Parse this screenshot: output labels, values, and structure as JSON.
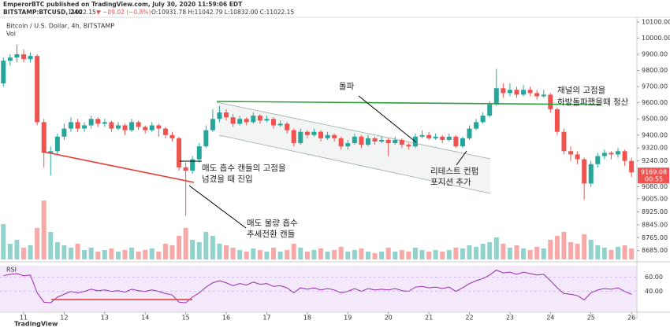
{
  "header": {
    "author_line": "EmperorBTC published on TradingView.com, July 30, 2020 11:59:06 EDT",
    "symbol": "BITSTAMP:BTCUSD, 240",
    "price": "11022.15",
    "change": "▼ −89.02 (−0.8%)",
    "ohlc": "O:10931.78 H:11042.79 L:10832.00 C:11022.15",
    "brand": "TradingView"
  },
  "annotations": {
    "breakout": "돌파",
    "entry": [
      "매도 흡수 캔들의 고점을",
      "넘겼을 때 진입"
    ],
    "reversal": [
      "매도 물량 흡수",
      "추세전환 캔들"
    ],
    "retest": [
      "리테스트 컨펌",
      "포지션 추가"
    ],
    "exit": [
      "채널의 고점을",
      "하방돌파했을때 청산"
    ]
  },
  "chart_data": [
    {
      "type": "candlestick",
      "title": "Bitcoin / U.S. Dollar, 4h, BITSTAMP",
      "volume_label": "Vol",
      "countdown": "00:55",
      "up_color": "#26a69a",
      "down_color": "#ef5350",
      "x": [
        0,
        1,
        2,
        3,
        4,
        5,
        6,
        7,
        8,
        9,
        10,
        11,
        12,
        13,
        14,
        15,
        16,
        17,
        18,
        19,
        20,
        21,
        22,
        23,
        24,
        25,
        26,
        27,
        28,
        29,
        30,
        31,
        32,
        33,
        34,
        35,
        36,
        37,
        38,
        39,
        40,
        41,
        42,
        43,
        44,
        45,
        46,
        47,
        48,
        49,
        50,
        51,
        52,
        53,
        54,
        55,
        56,
        57,
        58,
        59,
        60,
        61,
        62,
        63,
        64,
        65,
        66,
        67,
        68,
        69,
        70,
        71,
        72,
        73,
        74,
        75,
        76,
        77,
        78,
        79,
        80,
        81,
        82,
        83,
        84,
        85,
        86,
        87,
        88,
        89,
        90,
        91,
        92,
        93
      ],
      "open": [
        9720,
        9860,
        9880,
        9900,
        9870,
        9890,
        9480,
        9290,
        9300,
        9390,
        9440,
        9480,
        9440,
        9460,
        9500,
        9470,
        9480,
        9440,
        9460,
        9430,
        9480,
        9450,
        9430,
        9460,
        9440,
        9400,
        9380,
        9200,
        9180,
        9250,
        9330,
        9430,
        9500,
        9540,
        9510,
        9470,
        9500,
        9480,
        9520,
        9490,
        9500,
        9460,
        9470,
        9430,
        9350,
        9420,
        9400,
        9420,
        9380,
        9400,
        9380,
        9330,
        9350,
        9390,
        9340,
        9380,
        9360,
        9370,
        9350,
        9370,
        9340,
        9330,
        9390,
        9400,
        9380,
        9390,
        9370,
        9390,
        9330,
        9380,
        9440,
        9480,
        9520,
        9590,
        9690,
        9660,
        9680,
        9650,
        9680,
        9660,
        9640,
        9650,
        9560,
        9420,
        9300,
        9280,
        9250,
        9100,
        9220,
        9270,
        9290,
        9280,
        9300,
        9240
      ],
      "high": [
        9880,
        9900,
        9960,
        9930,
        9910,
        9900,
        9500,
        9330,
        9410,
        9470,
        9510,
        9500,
        9480,
        9520,
        9510,
        9500,
        9490,
        9480,
        9470,
        9500,
        9490,
        9460,
        9480,
        9470,
        9450,
        9420,
        9390,
        9230,
        9270,
        9350,
        9460,
        9560,
        9580,
        9560,
        9530,
        9520,
        9510,
        9540,
        9530,
        9520,
        9510,
        9490,
        9480,
        9440,
        9440,
        9430,
        9440,
        9430,
        9420,
        9410,
        9390,
        9370,
        9410,
        9400,
        9400,
        9390,
        9390,
        9380,
        9390,
        9380,
        9350,
        9410,
        9430,
        9420,
        9410,
        9400,
        9410,
        9400,
        9390,
        9460,
        9500,
        9540,
        9610,
        9810,
        9720,
        9720,
        9700,
        9710,
        9700,
        9680,
        9680,
        9660,
        9570,
        9440,
        9330,
        9300,
        9260,
        9240,
        9290,
        9310,
        9300,
        9320,
        9310,
        9260
      ],
      "low": [
        9700,
        9830,
        9850,
        9850,
        9850,
        9460,
        9200,
        9150,
        9280,
        9370,
        9420,
        9420,
        9420,
        9440,
        9450,
        9450,
        9420,
        9430,
        9400,
        9420,
        9430,
        9410,
        9420,
        9390,
        9380,
        9360,
        9180,
        8900,
        9160,
        9230,
        9320,
        9420,
        9480,
        9490,
        9450,
        9460,
        9460,
        9470,
        9470,
        9480,
        9440,
        9450,
        9410,
        9330,
        9340,
        9380,
        9390,
        9360,
        9370,
        9360,
        9310,
        9310,
        9340,
        9320,
        9330,
        9340,
        9350,
        9270,
        9340,
        9320,
        9310,
        9320,
        9380,
        9370,
        9370,
        9350,
        9360,
        9320,
        9320,
        9370,
        9430,
        9470,
        9510,
        9580,
        9630,
        9640,
        9630,
        9640,
        9640,
        9620,
        9630,
        9540,
        9400,
        9280,
        9240,
        9220,
        9000,
        9080,
        9200,
        9250,
        9250,
        9260,
        9210,
        9140
      ],
      "close": [
        9860,
        9880,
        9900,
        9870,
        9890,
        9480,
        9290,
        9300,
        9390,
        9440,
        9480,
        9440,
        9460,
        9500,
        9470,
        9480,
        9440,
        9460,
        9430,
        9480,
        9450,
        9430,
        9460,
        9440,
        9400,
        9380,
        9200,
        9180,
        9250,
        9330,
        9430,
        9500,
        9540,
        9510,
        9470,
        9500,
        9480,
        9520,
        9490,
        9500,
        9460,
        9470,
        9430,
        9350,
        9420,
        9400,
        9420,
        9380,
        9400,
        9380,
        9330,
        9350,
        9390,
        9340,
        9380,
        9360,
        9370,
        9350,
        9370,
        9340,
        9330,
        9390,
        9400,
        9380,
        9390,
        9370,
        9390,
        9330,
        9380,
        9440,
        9480,
        9520,
        9590,
        9690,
        9660,
        9680,
        9650,
        9680,
        9660,
        9640,
        9650,
        9560,
        9420,
        9300,
        9280,
        9250,
        9100,
        9220,
        9270,
        9290,
        9280,
        9300,
        9240,
        9169.08
      ],
      "volume": [
        45,
        20,
        25,
        15,
        18,
        40,
        75,
        35,
        22,
        18,
        15,
        20,
        12,
        15,
        10,
        12,
        14,
        10,
        12,
        15,
        10,
        12,
        14,
        10,
        20,
        18,
        30,
        40,
        25,
        22,
        35,
        30,
        20,
        18,
        15,
        12,
        10,
        14,
        12,
        10,
        15,
        10,
        12,
        20,
        15,
        10,
        12,
        14,
        10,
        12,
        16,
        10,
        12,
        14,
        10,
        8,
        10,
        15,
        10,
        12,
        10,
        15,
        12,
        10,
        12,
        10,
        12,
        15,
        14,
        18,
        16,
        20,
        22,
        28,
        20,
        15,
        18,
        14,
        12,
        16,
        14,
        25,
        30,
        35,
        22,
        20,
        32,
        25,
        18,
        15,
        12,
        16,
        18,
        14
      ],
      "xlim": [
        -0.5,
        93.8
      ],
      "xticks": [
        {
          "value": 3,
          "label": "11"
        },
        {
          "value": 9,
          "label": "12"
        },
        {
          "value": 15,
          "label": "13"
        },
        {
          "value": 21,
          "label": "14"
        },
        {
          "value": 27,
          "label": "15"
        },
        {
          "value": 33,
          "label": "16"
        },
        {
          "value": 39,
          "label": "17"
        },
        {
          "value": 45,
          "label": "18"
        },
        {
          "value": 51,
          "label": "19"
        },
        {
          "value": 57,
          "label": "20"
        },
        {
          "value": 63,
          "label": "21"
        },
        {
          "value": 69,
          "label": "22"
        },
        {
          "value": 75,
          "label": "23"
        },
        {
          "value": 81,
          "label": "24"
        },
        {
          "value": 87,
          "label": "25"
        },
        {
          "value": 93,
          "label": "26"
        }
      ],
      "ylim": [
        8630,
        10129
      ],
      "yticks": [
        {
          "value": 10100,
          "label": "10100.00"
        },
        {
          "value": 10000,
          "label": "10000.00"
        },
        {
          "value": 9900,
          "label": "9900.00"
        },
        {
          "value": 9800,
          "label": "9800.00"
        },
        {
          "value": 9700,
          "label": "9700.00"
        },
        {
          "value": 9600,
          "label": "9600.00"
        },
        {
          "value": 9500,
          "label": "9500.00"
        },
        {
          "value": 9400,
          "label": "9400.00"
        },
        {
          "value": 9320,
          "label": "9320.00"
        },
        {
          "value": 9240,
          "label": "9240.00"
        },
        {
          "value": 9080,
          "label": "9080.00"
        },
        {
          "value": 9005,
          "label": "9005.00"
        },
        {
          "value": 8925,
          "label": "8925.00"
        },
        {
          "value": 8845,
          "label": "8845.00"
        },
        {
          "value": 8765,
          "label": "8765.00"
        },
        {
          "value": 8685,
          "label": "8685.00"
        }
      ]
    },
    {
      "type": "line",
      "title": "RSI",
      "color": "#9c27b0",
      "values": [
        62,
        64,
        65,
        62,
        63,
        38,
        25,
        24,
        32,
        36,
        40,
        38,
        40,
        43,
        41,
        42,
        40,
        41,
        39,
        43,
        41,
        40,
        42,
        40,
        37,
        35,
        25,
        24,
        32,
        38,
        46,
        52,
        55,
        52,
        48,
        51,
        49,
        53,
        50,
        51,
        47,
        48,
        45,
        38,
        45,
        43,
        45,
        42,
        44,
        42,
        38,
        40,
        44,
        40,
        44,
        42,
        43,
        42,
        44,
        41,
        40,
        46,
        47,
        45,
        46,
        44,
        46,
        40,
        45,
        51,
        55,
        58,
        63,
        70,
        66,
        67,
        64,
        67,
        65,
        63,
        64,
        55,
        45,
        37,
        36,
        34,
        28,
        38,
        42,
        44,
        43,
        45,
        40,
        36
      ],
      "ylim": [
        12,
        76
      ],
      "yticks": [
        {
          "value": 60,
          "label": "60.00"
        },
        {
          "value": 40,
          "label": "40.00"
        }
      ]
    }
  ]
}
